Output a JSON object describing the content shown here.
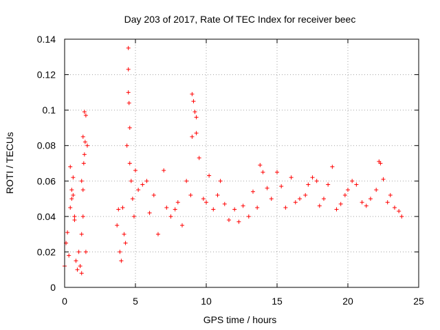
{
  "chart_data": {
    "type": "scatter",
    "title": "Day 203 of 2017, Rate Of TEC Index for receiver beec",
    "xlabel": "GPS time / hours",
    "ylabel": "ROTI / TECUs",
    "xlim": [
      0,
      25
    ],
    "ylim": [
      0,
      0.14
    ],
    "x_ticks": [
      0,
      5,
      10,
      15,
      20,
      25
    ],
    "x_tick_labels": [
      "0",
      "5",
      "10",
      "15",
      "20",
      "25"
    ],
    "y_ticks": [
      0,
      0.02,
      0.04,
      0.06,
      0.08,
      0.1,
      0.12,
      0.14
    ],
    "y_tick_labels": [
      "0",
      "0.02",
      "0.04",
      "0.06",
      "0.08",
      "0.1",
      "0.12",
      "0.14"
    ],
    "grid": true,
    "marker": "plus",
    "marker_color": "#ff0000",
    "series": [
      {
        "x": [
          0.0,
          0.1,
          0.2,
          0.3,
          0.4,
          0.5,
          0.6,
          0.7,
          0.8,
          0.9,
          1.0,
          1.1,
          1.2,
          1.3,
          1.4,
          1.5,
          1.6,
          0.4,
          0.5,
          0.6,
          0.7,
          1.2,
          1.3,
          1.35,
          1.4,
          1.45,
          1.3,
          1.2,
          1.5,
          3.7,
          3.8,
          3.9,
          4.0,
          4.1,
          4.2,
          4.3,
          4.4,
          4.5,
          4.5,
          4.5,
          4.55,
          4.6,
          4.6,
          4.7,
          4.8,
          4.9,
          5.0,
          5.2,
          5.5,
          5.8,
          6.0,
          6.3,
          6.6,
          7.0,
          7.2,
          7.5,
          7.8,
          8.0,
          8.3,
          8.6,
          8.9,
          9.0,
          9.0,
          9.1,
          9.2,
          9.3,
          9.3,
          9.5,
          9.8,
          10.0,
          10.2,
          10.5,
          10.8,
          11.0,
          11.3,
          11.6,
          12.0,
          12.3,
          12.6,
          13.0,
          13.3,
          13.6,
          13.8,
          14.0,
          14.3,
          14.6,
          15.0,
          15.3,
          15.6,
          16.0,
          16.3,
          16.6,
          17.0,
          17.2,
          17.5,
          17.8,
          18.0,
          18.3,
          18.6,
          18.9,
          19.2,
          19.5,
          19.8,
          20.0,
          20.3,
          20.6,
          21.0,
          21.3,
          21.6,
          22.0,
          22.2,
          22.3,
          22.5,
          22.8,
          23.0,
          23.3,
          23.6,
          23.8
        ],
        "y": [
          0.012,
          0.025,
          0.031,
          0.018,
          0.068,
          0.055,
          0.062,
          0.04,
          0.015,
          0.01,
          0.02,
          0.012,
          0.008,
          0.085,
          0.099,
          0.097,
          0.08,
          0.045,
          0.05,
          0.052,
          0.038,
          0.06,
          0.055,
          0.07,
          0.075,
          0.082,
          0.04,
          0.03,
          0.02,
          0.035,
          0.044,
          0.02,
          0.015,
          0.045,
          0.03,
          0.025,
          0.08,
          0.135,
          0.123,
          0.11,
          0.104,
          0.09,
          0.07,
          0.06,
          0.05,
          0.04,
          0.066,
          0.055,
          0.058,
          0.06,
          0.042,
          0.052,
          0.03,
          0.066,
          0.045,
          0.04,
          0.044,
          0.048,
          0.035,
          0.06,
          0.052,
          0.085,
          0.109,
          0.105,
          0.099,
          0.096,
          0.087,
          0.073,
          0.05,
          0.048,
          0.063,
          0.044,
          0.052,
          0.06,
          0.047,
          0.038,
          0.044,
          0.037,
          0.046,
          0.04,
          0.054,
          0.045,
          0.069,
          0.065,
          0.056,
          0.05,
          0.065,
          0.057,
          0.045,
          0.062,
          0.048,
          0.05,
          0.052,
          0.058,
          0.062,
          0.06,
          0.046,
          0.05,
          0.058,
          0.068,
          0.044,
          0.047,
          0.052,
          0.055,
          0.06,
          0.058,
          0.048,
          0.046,
          0.05,
          0.055,
          0.071,
          0.07,
          0.061,
          0.048,
          0.052,
          0.045,
          0.043,
          0.04
        ]
      }
    ]
  }
}
